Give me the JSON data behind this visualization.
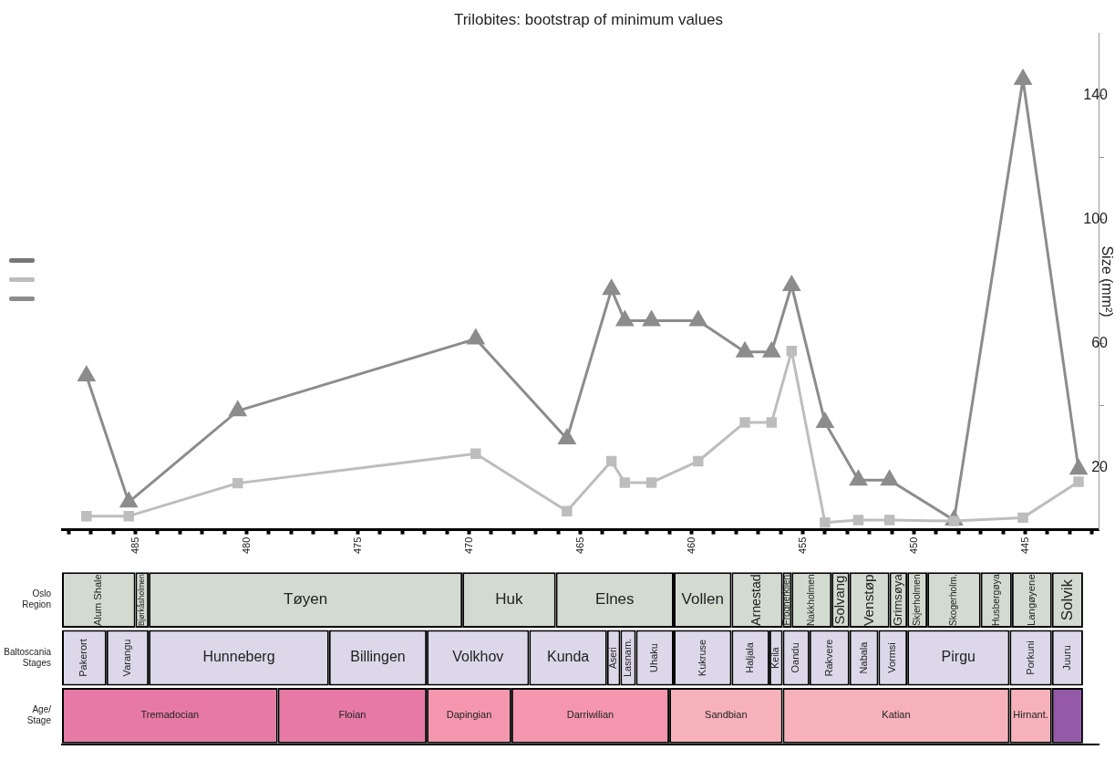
{
  "chart_data": [
    {
      "type": "line",
      "title": "Trilobites: bootstrap of minimum values",
      "ylabel": "Size (mm²)",
      "x": [
        487.2,
        485.3,
        480.4,
        469.7,
        465.6,
        463.6,
        463.0,
        461.8,
        459.7,
        457.6,
        456.4,
        455.5,
        454.0,
        452.5,
        451.1,
        448.2,
        445.1,
        442.6
      ],
      "series": [
        {
          "color": "#777777",
          "marker": "diamond",
          "values": [
            null,
            null,
            null,
            null,
            null,
            null,
            null,
            null,
            null,
            null,
            null,
            null,
            null,
            null,
            null,
            null,
            null,
            null
          ]
        },
        {
          "color": "#bdbdbd",
          "marker": "square",
          "values": [
            4.4,
            4.4,
            15.0,
            24.5,
            6.0,
            22.1,
            15.2,
            15.2,
            22.1,
            34.6,
            34.6,
            57.6,
            2.3,
            3.1,
            3.1,
            2.8,
            3.9,
            15.5
          ]
        },
        {
          "color": "#8c8c8c",
          "marker": "triangle",
          "values": [
            49.6,
            8.9,
            38.3,
            61.5,
            29.3,
            77.4,
            67.4,
            67.4,
            67.4,
            57.3,
            57.3,
            78.7,
            34.6,
            16.0,
            16.0,
            3.1,
            145.1,
            19.5
          ]
        }
      ],
      "xlim": [
        488.3,
        441.7
      ],
      "xticks": [
        {
          "value": 488,
          "label": null
        },
        {
          "value": 487,
          "label": null
        },
        {
          "value": 486,
          "label": null
        },
        485,
        {
          "value": 484,
          "label": null
        },
        {
          "value": 483,
          "label": null
        },
        {
          "value": 482,
          "label": null
        },
        {
          "value": 481,
          "label": null
        },
        480,
        {
          "value": 479,
          "label": null
        },
        {
          "value": 478,
          "label": null
        },
        {
          "value": 477,
          "label": null
        },
        {
          "value": 476,
          "label": null
        },
        475,
        {
          "value": 474,
          "label": null
        },
        {
          "value": 473,
          "label": null
        },
        {
          "value": 472,
          "label": null
        },
        {
          "value": 471,
          "label": null
        },
        470,
        {
          "value": 469,
          "label": null
        },
        {
          "value": 468,
          "label": null
        },
        {
          "value": 467,
          "label": null
        },
        {
          "value": 466,
          "label": null
        },
        465,
        {
          "value": 464,
          "label": null
        },
        {
          "value": 463,
          "label": null
        },
        {
          "value": 462,
          "label": null
        },
        {
          "value": 461,
          "label": null
        },
        460,
        {
          "value": 459,
          "label": null
        },
        {
          "value": 458,
          "label": null
        },
        {
          "value": 457,
          "label": null
        },
        {
          "value": 456,
          "label": null
        },
        455,
        {
          "value": 454,
          "label": null
        },
        {
          "value": 453,
          "label": null
        },
        {
          "value": 452,
          "label": null
        },
        {
          "value": 451,
          "label": null
        },
        450,
        {
          "value": 449,
          "label": null
        },
        {
          "value": 448,
          "label": null
        },
        {
          "value": 447,
          "label": null
        },
        {
          "value": 446,
          "label": null
        },
        445,
        {
          "value": 444,
          "label": null
        },
        {
          "value": 443,
          "label": null
        },
        {
          "value": 442,
          "label": null
        }
      ],
      "ylim": [
        0,
        160
      ],
      "yticks": [
        20,
        {
          "value": 40,
          "label": null
        },
        60,
        {
          "value": 80,
          "label": null
        },
        100,
        {
          "value": 120,
          "label": null
        },
        140
      ],
      "grid": false,
      "line_style": "solid"
    },
    {
      "type": "bar",
      "orientation": "horizontal",
      "categories": [
        "Oslo Region",
        "Baltoscania Stages",
        "Age/ Stage"
      ],
      "xlim": [
        488.3,
        441.7
      ],
      "tick_labels": "y",
      "grid": false,
      "series": [
        {
          "values": [
            3.3,
            2.0,
            9.7
          ],
          "base": [
            485.0,
            486.3,
            478.6
          ],
          "colors": [
            "#d3dbd0",
            "#dcd8ea",
            "#e67aa4"
          ],
          "value_labels": [
            "Alum Shale",
            "Pakerort",
            "Tremadocian"
          ]
        },
        {
          "values": [
            0.6,
            1.9,
            6.7
          ],
          "base": [
            484.4,
            484.4,
            471.9
          ],
          "colors": [
            "#d3dbd0",
            "#dcd8ea",
            "#e67aa4"
          ],
          "value_labels": [
            "Bjørkåsholmen",
            "Varangu",
            "Floian"
          ]
        },
        {
          "values": [
            14.1,
            8.1,
            3.8
          ],
          "base": [
            470.3,
            476.3,
            468.1
          ],
          "colors": [
            "#d3dbd0",
            "#dcd8ea",
            "#f497ae"
          ],
          "value_labels": [
            "Tøyen",
            "Hunneberg",
            "Dapingian"
          ]
        },
        {
          "values": [
            4.2,
            4.4,
            7.1
          ],
          "base": [
            466.1,
            471.9,
            461.0
          ],
          "colors": [
            "#d3dbd0",
            "#dcd8ea",
            "#f497ae"
          ],
          "value_labels": [
            "Huk",
            "Billingen",
            "Darriwilian"
          ]
        },
        {
          "values": [
            5.3,
            4.6,
            5.1
          ],
          "base": [
            460.8,
            467.3,
            455.9
          ],
          "colors": [
            "#d3dbd0",
            "#dcd8ea",
            "#f6b1ba"
          ],
          "value_labels": [
            "Elnes",
            "Volkhov",
            "Sandbian"
          ]
        },
        {
          "values": [
            2.6,
            3.5,
            10.2
          ],
          "base": [
            458.2,
            463.8,
            445.7
          ],
          "colors": [
            "#d3dbd0",
            "#dcd8ea",
            "#f6b1ba"
          ],
          "value_labels": [
            "Vollen",
            "Kunda",
            "Katian"
          ]
        },
        {
          "values": [
            2.3,
            0.6,
            1.9
          ],
          "base": [
            455.9,
            463.2,
            443.8
          ],
          "colors": [
            "#d3dbd0",
            "#dcd8ea",
            "#f6b1ba"
          ],
          "value_labels": [
            "Arnestad",
            "Aseri",
            "Hirnant."
          ]
        },
        {
          "values": [
            0.4,
            0.7,
            1.4
          ],
          "base": [
            455.5,
            462.5,
            442.4
          ],
          "colors": [
            "#d3dbd0",
            "#dcd8ea",
            "#9459a8"
          ],
          "value_labels": [
            "Frognerkilen",
            "Lasnam.",
            null
          ]
        },
        {
          "values": [
            1.8,
            1.7,
            null
          ],
          "base": [
            453.7,
            460.8,
            null
          ],
          "colors": [
            "#d3dbd0",
            "#dcd8ea",
            null
          ],
          "value_labels": [
            "Nakkholmen",
            "Uhaku",
            null
          ]
        },
        {
          "values": [
            0.8,
            2.6,
            null
          ],
          "base": [
            452.9,
            458.2,
            null
          ],
          "colors": [
            "#d3dbd0",
            "#dcd8ea",
            null
          ],
          "value_labels": [
            "Solvang",
            "Kukruse",
            null
          ]
        },
        {
          "values": [
            1.8,
            1.7,
            null
          ],
          "base": [
            451.1,
            456.5,
            null
          ],
          "colors": [
            "#d3dbd0",
            "#dcd8ea",
            null
          ],
          "value_labels": [
            "Venstøp",
            "Haljala",
            null
          ]
        },
        {
          "values": [
            0.8,
            0.6,
            null
          ],
          "base": [
            450.3,
            455.9,
            null
          ],
          "colors": [
            "#d3dbd0",
            "#dcd8ea",
            null
          ],
          "value_labels": [
            "Grimsøya",
            "Keila",
            null
          ]
        },
        {
          "values": [
            0.9,
            1.2,
            null
          ],
          "base": [
            449.4,
            454.7,
            null
          ],
          "colors": [
            "#d3dbd0",
            "#dcd8ea",
            null
          ],
          "value_labels": [
            "Skjerholmen",
            "Oandu",
            null
          ]
        },
        {
          "values": [
            2.4,
            1.8,
            null
          ],
          "base": [
            447.0,
            452.9,
            null
          ],
          "colors": [
            "#d3dbd0",
            "#dcd8ea",
            null
          ],
          "value_labels": [
            "Skogerholm.",
            "Rakvere",
            null
          ]
        },
        {
          "values": [
            1.4,
            1.3,
            null
          ],
          "base": [
            445.6,
            451.6,
            null
          ],
          "colors": [
            "#d3dbd0",
            "#dcd8ea",
            null
          ],
          "value_labels": [
            "Husbergøya",
            "Nabala",
            null
          ]
        },
        {
          "values": [
            1.8,
            1.3,
            null
          ],
          "base": [
            443.8,
            450.3,
            null
          ],
          "colors": [
            "#d3dbd0",
            "#dcd8ea",
            null
          ],
          "value_labels": [
            "Langøyene",
            "Vormsi",
            null
          ]
        },
        {
          "values": [
            1.4,
            4.6,
            null
          ],
          "base": [
            442.4,
            445.7,
            null
          ],
          "colors": [
            "#d3dbd0",
            "#dcd8ea",
            null
          ],
          "value_labels": [
            "Solvik",
            "Pirgu",
            null
          ]
        },
        {
          "values": [
            null,
            1.9,
            null
          ],
          "base": [
            null,
            443.8,
            null
          ],
          "colors": [
            null,
            "#dcd8ea",
            null
          ],
          "value_labels": [
            null,
            "Porkuni",
            null
          ]
        },
        {
          "values": [
            null,
            1.4,
            null
          ],
          "base": [
            null,
            442.4,
            null
          ],
          "colors": [
            null,
            "#dcd8ea",
            null
          ],
          "value_labels": [
            null,
            "Juuru",
            null
          ]
        }
      ]
    }
  ]
}
